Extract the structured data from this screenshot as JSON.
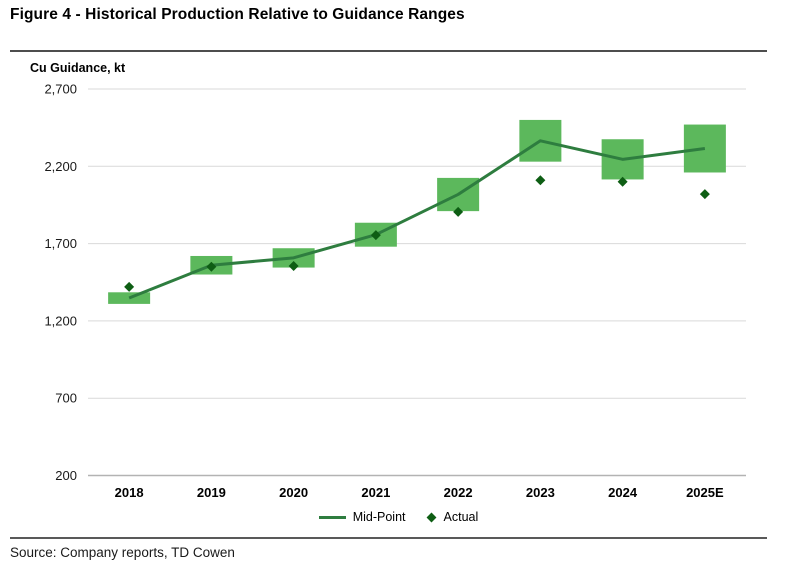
{
  "title": "Figure 4 - Historical Production Relative to Guidance Ranges",
  "source": "Source: Company reports, TD Cowen",
  "legend": {
    "mid_point_label": "Mid-Point",
    "actual_label": "Actual"
  },
  "chart_data": {
    "type": "bar",
    "title": "Figure 4 - Historical Production Relative to Guidance Ranges",
    "ylabel": "Cu Guidance, kt",
    "xlabel": "",
    "categories": [
      "2018",
      "2019",
      "2020",
      "2021",
      "2022",
      "2023",
      "2024",
      "2025E"
    ],
    "series": [
      {
        "name": "Guidance Range",
        "type": "range-bar",
        "low": [
          1310,
          1500,
          1545,
          1680,
          1910,
          2230,
          2115,
          2160
        ],
        "high": [
          1385,
          1620,
          1670,
          1835,
          2125,
          2500,
          2375,
          2470
        ]
      },
      {
        "name": "Mid-Point",
        "type": "line",
        "values": [
          1348,
          1560,
          1608,
          1758,
          2018,
          2365,
          2245,
          2315
        ]
      },
      {
        "name": "Actual",
        "type": "scatter-diamond",
        "values": [
          1420,
          1550,
          1555,
          1755,
          1905,
          2110,
          2100,
          2020
        ]
      }
    ],
    "y_ticks": {
      "labels": [
        "2,700",
        "2,200",
        "1,700",
        "1,200",
        "700",
        "200"
      ],
      "values": [
        2700,
        2200,
        1700,
        1200,
        700,
        200
      ]
    },
    "ylim": [
      200,
      2700
    ],
    "grid": "horizontal",
    "legend_position": "bottom",
    "colors": {
      "bar": "#5CB85C",
      "line": "#2E7D3F",
      "diamond": "#0E5E14",
      "grid": "#D9D9D9",
      "axis": "#B3B3B3",
      "text": "#1A1A1A"
    }
  }
}
